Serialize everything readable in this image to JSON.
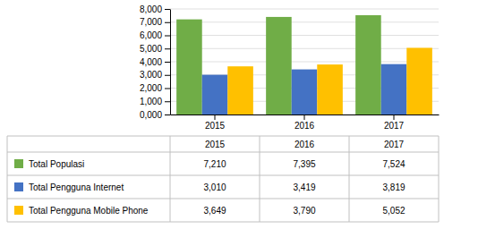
{
  "chart_data": {
    "type": "bar",
    "categories": [
      "2015",
      "2016",
      "2017"
    ],
    "series": [
      {
        "name": "Total Populasi",
        "color": "#70AD47",
        "values": [
          7210,
          7395,
          7524
        ],
        "value_labels": [
          "7,210",
          "7,395",
          "7,524"
        ]
      },
      {
        "name": "Total Pengguna Internet",
        "color": "#4472C4",
        "values": [
          3010,
          3419,
          3819
        ],
        "value_labels": [
          "3,010",
          "3,419",
          "3,819"
        ]
      },
      {
        "name": "Total Pengguna Mobile Phone",
        "color": "#FFC000",
        "values": [
          3649,
          3790,
          5052
        ],
        "value_labels": [
          "3,649",
          "3,790",
          "5,052"
        ]
      }
    ],
    "ylim": [
      0,
      8000
    ],
    "yticks": [
      {
        "value": 0,
        "label": "0,000"
      },
      {
        "value": 1000,
        "label": "1,000"
      },
      {
        "value": 2000,
        "label": "2,000"
      },
      {
        "value": 3000,
        "label": "3,000"
      },
      {
        "value": 4000,
        "label": "4,000"
      },
      {
        "value": 5000,
        "label": "5,000"
      },
      {
        "value": 6000,
        "label": "6,000"
      },
      {
        "value": 7000,
        "label": "7,000"
      },
      {
        "value": 8000,
        "label": "8,000"
      }
    ],
    "grid": true
  }
}
